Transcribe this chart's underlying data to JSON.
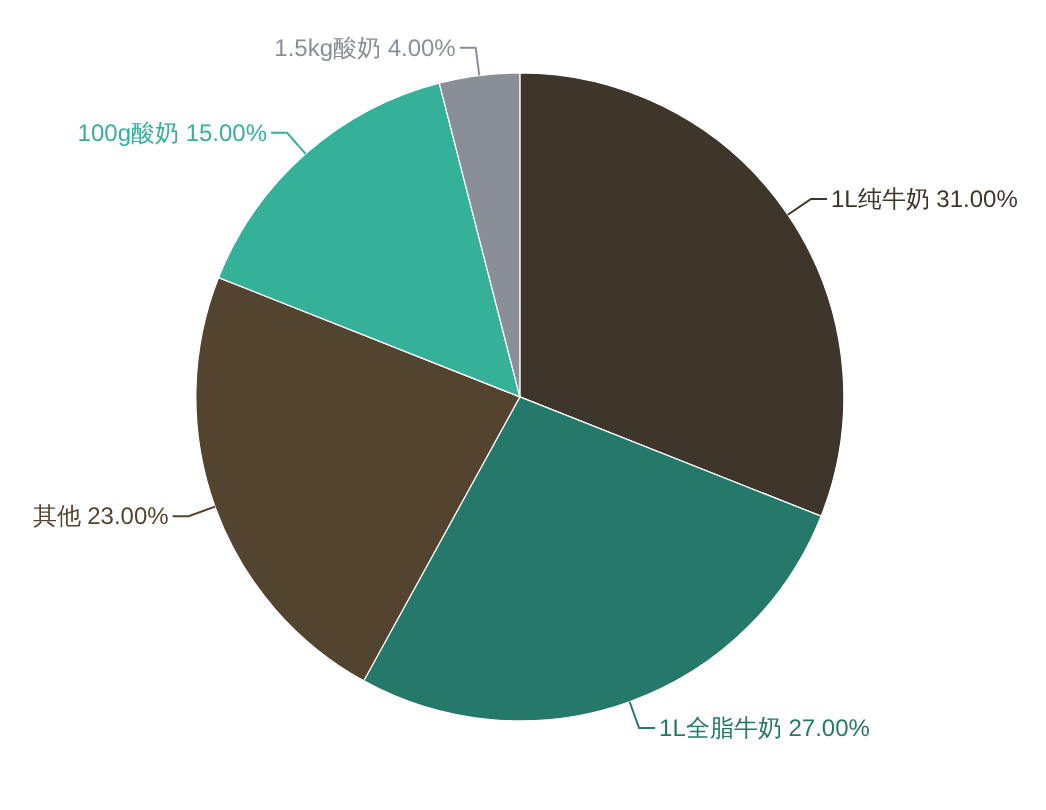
{
  "chart_data": {
    "type": "pie",
    "categories": [
      "1L纯牛奶",
      "1L全脂牛奶",
      "其他",
      "100g酸奶",
      "1.5kg酸奶"
    ],
    "values": [
      31,
      27,
      23,
      15,
      4
    ],
    "value_labels": [
      "31.00%",
      "27.00%",
      "23.00%",
      "15.00%",
      "4.00%"
    ],
    "colors": [
      "#3f362b",
      "#25796a",
      "#52442f",
      "#35b099",
      "#8a8e96"
    ]
  }
}
